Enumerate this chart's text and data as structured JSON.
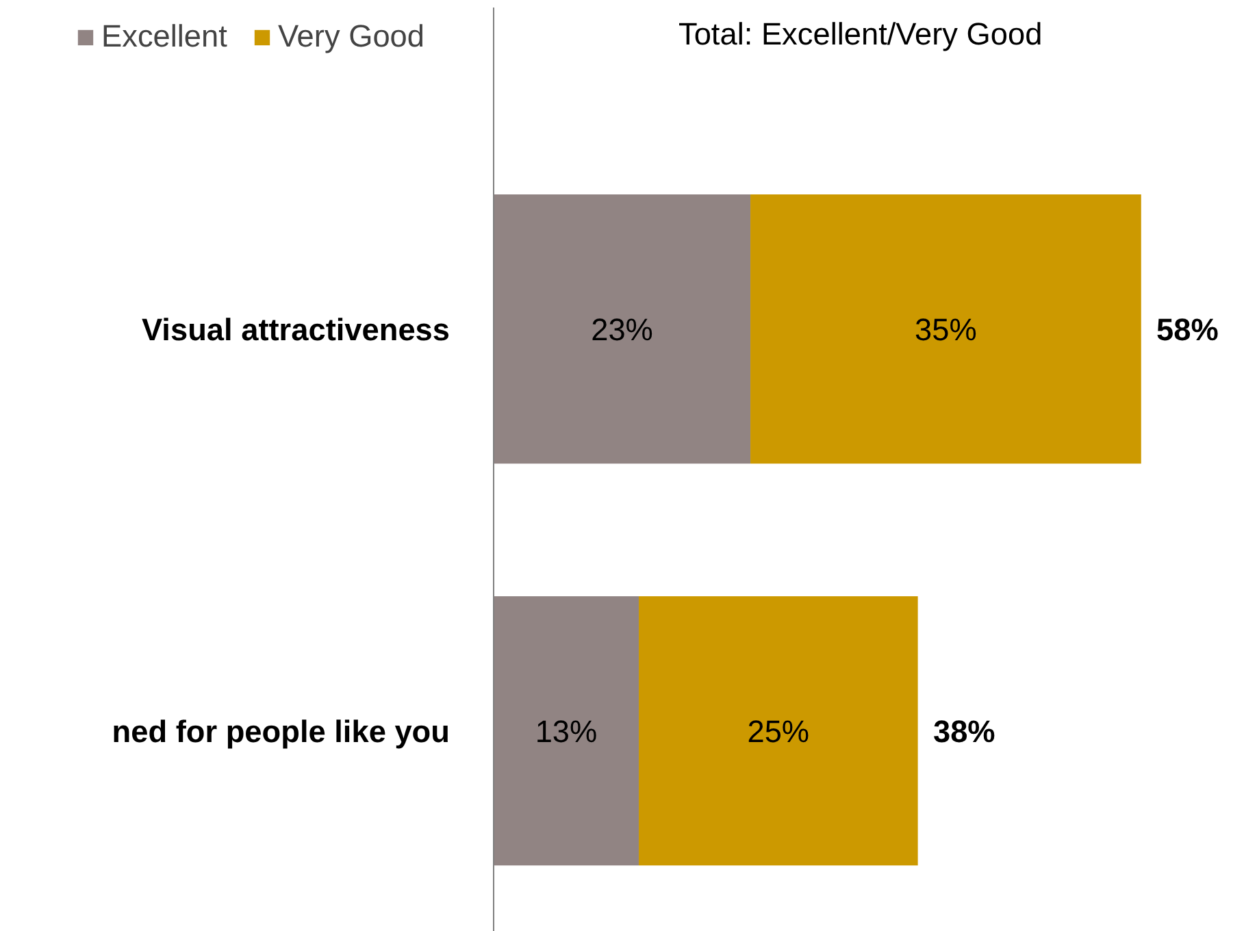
{
  "chart_data": {
    "type": "bar",
    "orientation": "horizontal",
    "stacked": true,
    "data_labels": true,
    "categories": [
      "Visual attractiveness",
      "ned for people like you"
    ],
    "series": [
      {
        "name": "Excellent",
        "color": "#918483",
        "values": [
          23,
          13
        ],
        "value_labels": [
          "23%",
          "13%"
        ]
      },
      {
        "name": "Very Good",
        "color": "#cc9900",
        "values": [
          35,
          25
        ],
        "value_labels": [
          "35%",
          "25%"
        ]
      }
    ],
    "totals": [
      "58%",
      "38%"
    ],
    "legend_title": "Total: Excellent/Very Good",
    "legend": "top",
    "grid": false,
    "tick_labels": "y"
  }
}
